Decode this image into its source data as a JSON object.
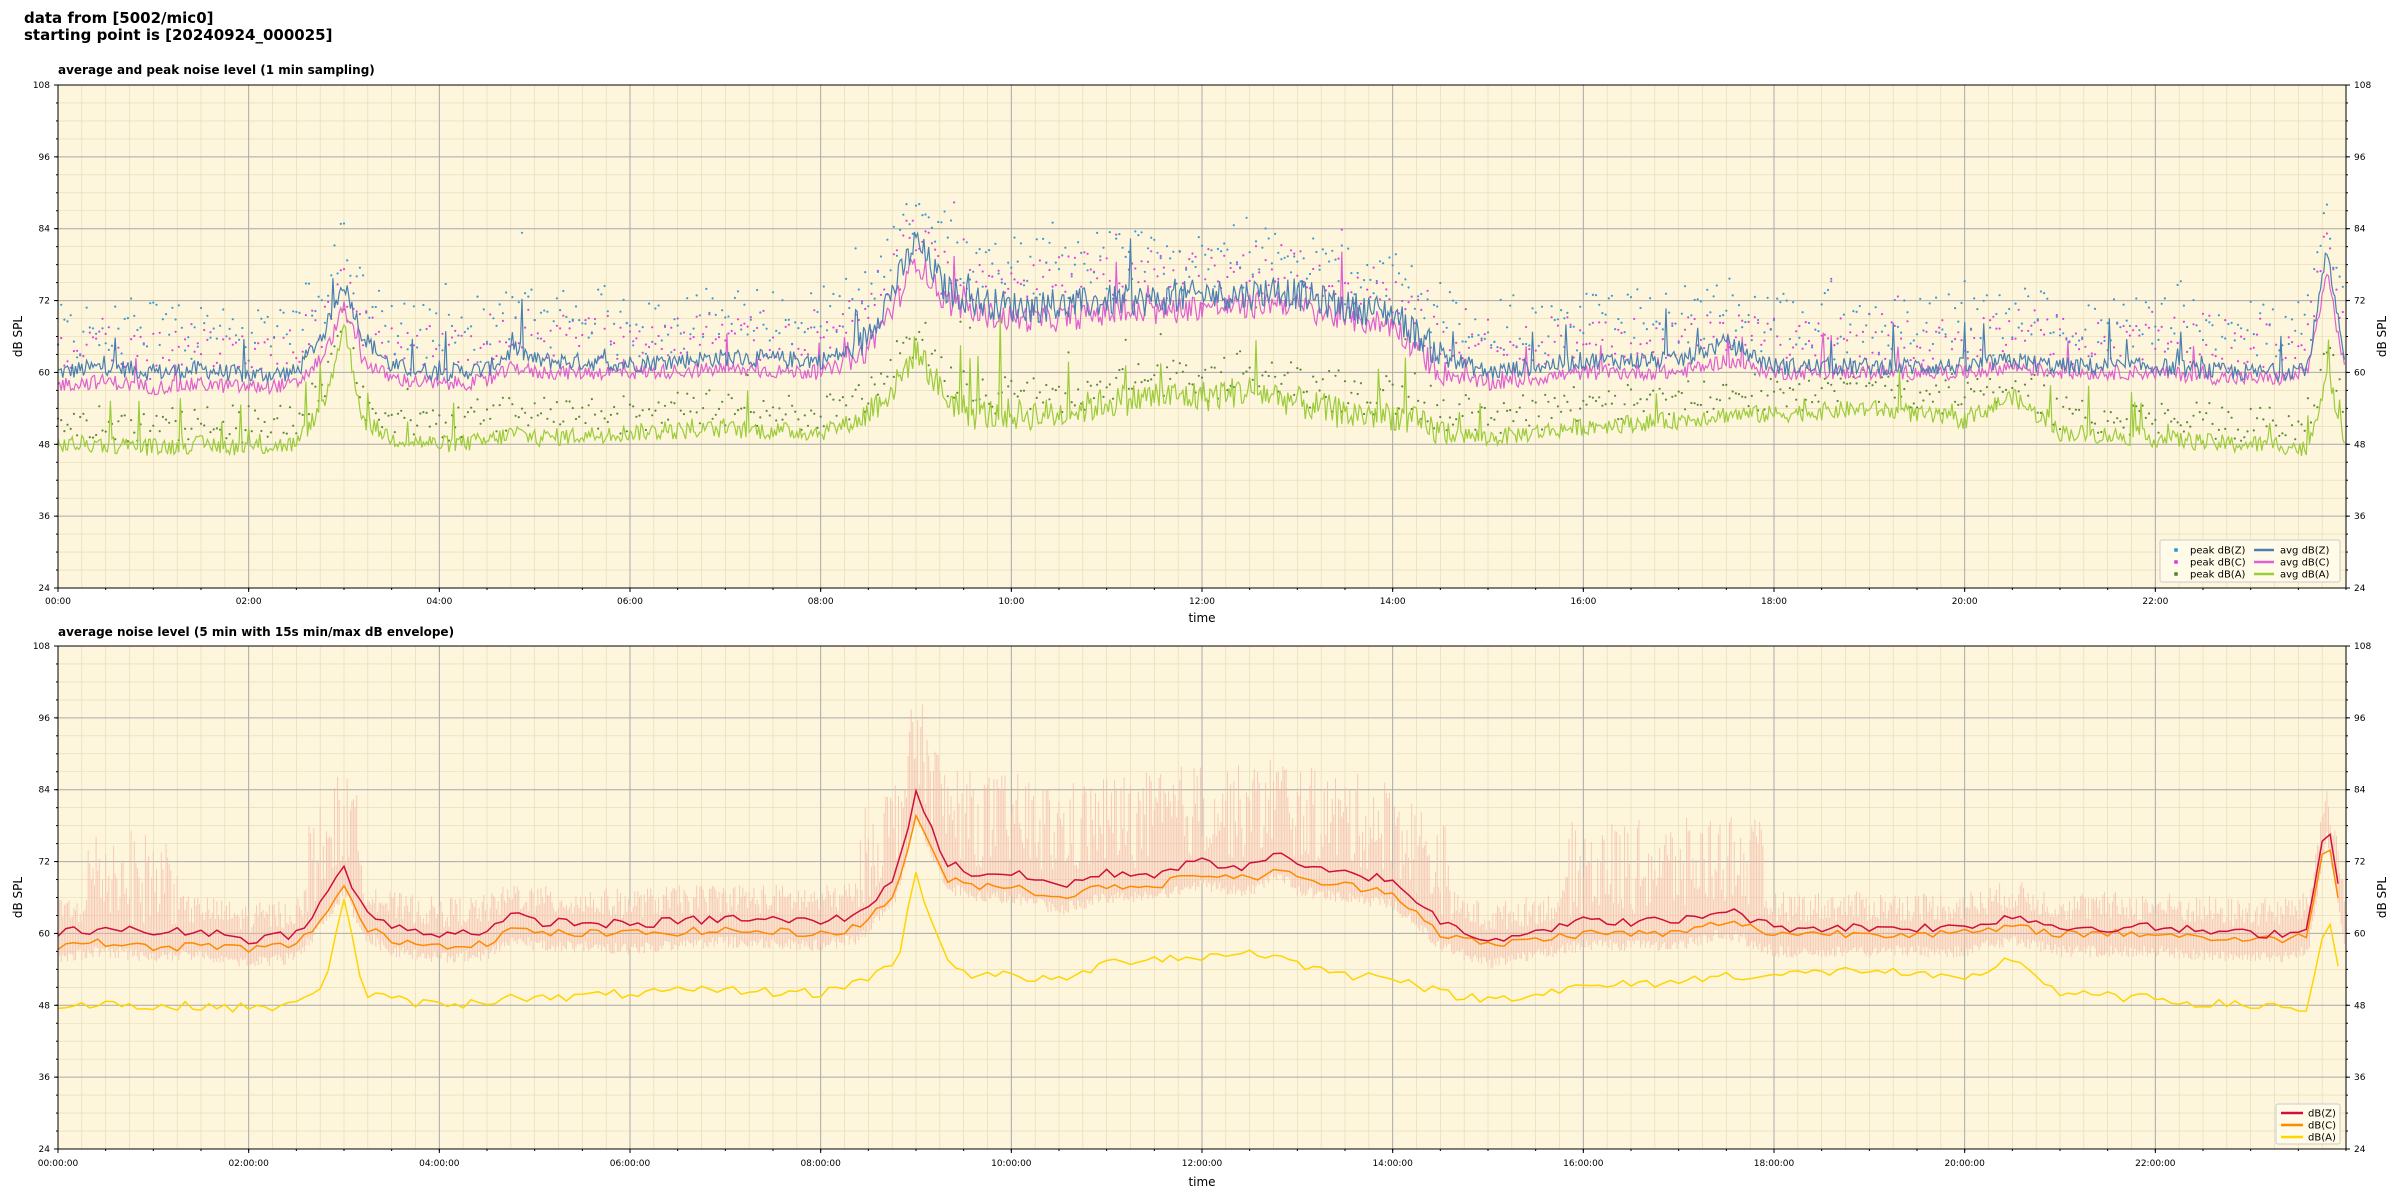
{
  "header": {
    "line1": "data from [5002/mic0]",
    "line2": "starting point is [20240924_000025]"
  },
  "chart_data": [
    {
      "type": "line",
      "title": "average and peak noise level (1 min sampling)",
      "xlabel": "time",
      "ylabel": "dB SPL",
      "xlim": [
        0,
        24
      ],
      "ylim": [
        24,
        108
      ],
      "yticks": [
        24,
        36,
        48,
        60,
        72,
        84,
        96,
        108
      ],
      "xtick_labels": [
        "00:00",
        "02:00",
        "04:00",
        "06:00",
        "08:00",
        "10:00",
        "12:00",
        "14:00",
        "16:00",
        "18:00",
        "20:00",
        "22:00"
      ],
      "grid": true,
      "legend_position": "bottom-right",
      "colors": {
        "background": "#fdf6dc",
        "Z": "#4a7fb0",
        "C": "#e060d0",
        "A": "#9ccc3a",
        "peakZ": "#3b9ad6",
        "peakC": "#e040e0",
        "peakA": "#5a8a3a"
      },
      "legend": [
        "peak dB(Z)",
        "peak dB(C)",
        "peak dB(A)",
        "avg dB(Z)",
        "avg dB(C)",
        "avg dB(A)"
      ],
      "series_keypoints": {
        "x_hours": [
          0,
          0.5,
          1,
          1.5,
          2,
          2.5,
          2.8,
          3.0,
          3.2,
          3.5,
          4,
          4.5,
          4.8,
          5,
          6,
          7,
          8,
          8.4,
          8.8,
          9.0,
          9.3,
          9.6,
          10,
          10.5,
          11,
          11.5,
          12,
          12.5,
          12.8,
          13,
          13.5,
          14,
          14.5,
          15,
          16,
          17,
          17.5,
          18,
          19,
          20,
          20.5,
          21,
          22,
          22.8,
          23.3,
          23.6,
          23.8,
          24
        ],
        "avg_Z": [
          60,
          61,
          60,
          60.5,
          59.5,
          60,
          67,
          75,
          66,
          61,
          60,
          60.5,
          64,
          62,
          61.5,
          62.5,
          62,
          64,
          75,
          82,
          74,
          72,
          71,
          71,
          72,
          72,
          73,
          73,
          74,
          73,
          71,
          70,
          63,
          60,
          62,
          62,
          65,
          61,
          61,
          61,
          62,
          61,
          61,
          60,
          60,
          61,
          80,
          60
        ],
        "avg_C": [
          58,
          58.5,
          57.5,
          58,
          57.5,
          58,
          63,
          71,
          62,
          59,
          58,
          58.5,
          61,
          60,
          60,
          60.5,
          60,
          62,
          72,
          79,
          72,
          70,
          69,
          69,
          70,
          70,
          71,
          71,
          72,
          71,
          69,
          68,
          60,
          58,
          60,
          60,
          62,
          60,
          60,
          60,
          61,
          60,
          60,
          59,
          59,
          60,
          77,
          59
        ],
        "avg_A": [
          48,
          48,
          47.5,
          48,
          47.5,
          48,
          55,
          68,
          52,
          49,
          48,
          48.5,
          50,
          49,
          50,
          50.5,
          50,
          52,
          58,
          64,
          56,
          53,
          53,
          53,
          55,
          56,
          56,
          57,
          56,
          55,
          53,
          53,
          50,
          49,
          51,
          52,
          53,
          53,
          54,
          52,
          56,
          50,
          49,
          48,
          48,
          47,
          60,
          48
        ]
      }
    },
    {
      "type": "line",
      "title": "average noise level (5 min with 15s min/max dB envelope)",
      "xlabel": "time",
      "ylabel": "dB SPL",
      "xlim": [
        0,
        24
      ],
      "ylim": [
        24,
        108
      ],
      "yticks": [
        24,
        36,
        48,
        60,
        72,
        84,
        96,
        108
      ],
      "xtick_labels": [
        "00:00:00",
        "02:00:00",
        "04:00:00",
        "06:00:00",
        "08:00:00",
        "10:00:00",
        "12:00:00",
        "14:00:00",
        "16:00:00",
        "18:00:00",
        "20:00:00",
        "22:00:00"
      ],
      "grid": true,
      "legend_position": "bottom-right",
      "colors": {
        "background": "#fdf6dc",
        "Z": "#d0103a",
        "C": "#ff8a00",
        "A": "#ffd400",
        "envelope": "#f4b8a8"
      },
      "legend": [
        "dB(Z)",
        "dB(C)",
        "dB(A)"
      ],
      "series_keypoints": {
        "x_hours": [
          0,
          0.5,
          1,
          1.5,
          2,
          2.5,
          2.8,
          3.0,
          3.2,
          3.5,
          4,
          4.5,
          4.8,
          5,
          6,
          7,
          8,
          8.4,
          8.8,
          9.0,
          9.3,
          9.6,
          10,
          10.5,
          11,
          11.5,
          12,
          12.5,
          12.8,
          13,
          13.5,
          14,
          14.5,
          15,
          16,
          17,
          17.5,
          18,
          19,
          20,
          20.5,
          21,
          22,
          22.8,
          23.3,
          23.6,
          23.8,
          24
        ],
        "avg_Z": [
          60,
          61,
          60,
          60.5,
          59,
          60,
          66,
          71,
          64,
          61,
          60,
          60.5,
          63,
          62,
          61.5,
          62.5,
          62,
          63,
          70,
          84,
          72,
          70,
          70,
          68,
          70,
          70,
          72,
          71,
          74,
          71,
          70,
          69,
          62,
          59,
          62,
          62,
          64,
          61,
          61,
          61,
          63,
          61,
          61,
          60,
          60,
          61,
          80,
          61
        ],
        "avg_C": [
          58,
          58.5,
          57.5,
          58,
          57.5,
          58,
          63,
          68,
          61,
          59,
          58,
          58.5,
          61,
          60,
          60,
          60.5,
          60,
          61,
          67,
          80,
          69,
          68,
          68,
          66,
          68,
          68,
          70,
          69,
          71,
          69,
          68,
          67,
          60,
          58,
          60,
          60,
          62,
          60,
          60,
          60,
          61,
          60,
          60,
          59,
          59,
          60,
          77,
          59
        ],
        "avg_A": [
          48,
          48.5,
          47.5,
          48,
          47.5,
          48,
          52,
          66,
          50,
          49,
          48,
          48.5,
          50,
          49,
          50,
          50.5,
          50,
          52,
          55,
          70,
          56,
          53,
          53,
          52,
          55,
          56,
          56,
          57,
          56,
          55,
          53,
          53,
          50,
          49,
          51,
          52,
          53,
          53,
          54,
          52,
          56,
          50,
          49,
          48,
          48,
          47,
          64,
          48
        ],
        "env_max_extra": 10,
        "env_min_extra": 3
      }
    }
  ]
}
